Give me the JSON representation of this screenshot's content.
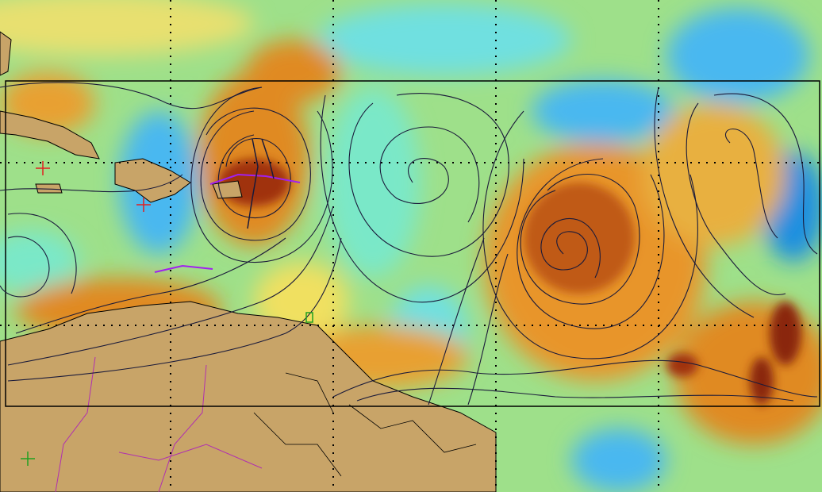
{
  "map": {
    "type": "satellite field with streamlines",
    "colors": {
      "low": "#1e8fe0",
      "mid_low": "#6fe0e0",
      "mid": "#9ee08a",
      "mid_high": "#f0e060",
      "high": "#e08a20",
      "very_high": "#c85a10",
      "max": "#7a1e05",
      "land": "#c8a468",
      "streamline": "#1a1a3a",
      "box": "#000000",
      "track": "#a020f0"
    },
    "layers": [
      "field-shading",
      "land",
      "country-borders",
      "graticule",
      "domain-box",
      "streamlines",
      "storm-tracks"
    ]
  }
}
